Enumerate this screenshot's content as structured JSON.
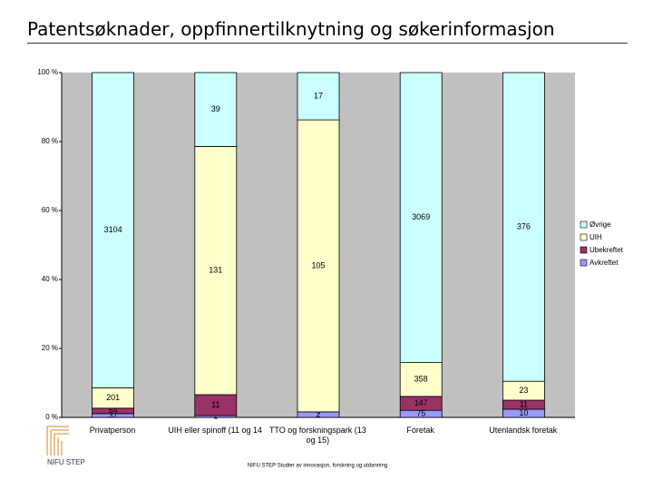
{
  "title": "Patentsøknader, oppfinnertilknytning og søkerinformasjon",
  "chart_data": {
    "type": "stacked_percent_bar",
    "categories": [
      "Privatperson",
      "UIH eller spinoff (11 og 14",
      "TTO og forskningspark (13 og 15)",
      "Foretak",
      "Utenlandsk foretak"
    ],
    "series": [
      {
        "name": "Avkreftet",
        "color": "#9999ff",
        "values": [
          37,
          1,
          2,
          75,
          10
        ]
      },
      {
        "name": "Ubekreftet",
        "color": "#993366",
        "values": [
          54,
          11,
          0,
          147,
          11
        ]
      },
      {
        "name": "UIH",
        "color": "#ffffcc",
        "values": [
          201,
          131,
          105,
          358,
          23
        ]
      },
      {
        "name": "Øvrige",
        "color": "#ccffff",
        "values": [
          3104,
          39,
          17,
          3069,
          376
        ]
      }
    ],
    "ylim": [
      0,
      100
    ],
    "yticks": [
      {
        "value": 0,
        "label": "0 %"
      },
      {
        "value": 20,
        "label": "20 %"
      },
      {
        "value": 40,
        "label": "40 %"
      },
      {
        "value": 60,
        "label": "60 %"
      },
      {
        "value": 80,
        "label": "80 %"
      },
      {
        "value": 100,
        "label": "100 %"
      }
    ],
    "grid": false,
    "legend": "right"
  },
  "footer": "NIFU STEP Studier av innovasjon, forskning og utdanning",
  "logo": "NIFU STEP"
}
